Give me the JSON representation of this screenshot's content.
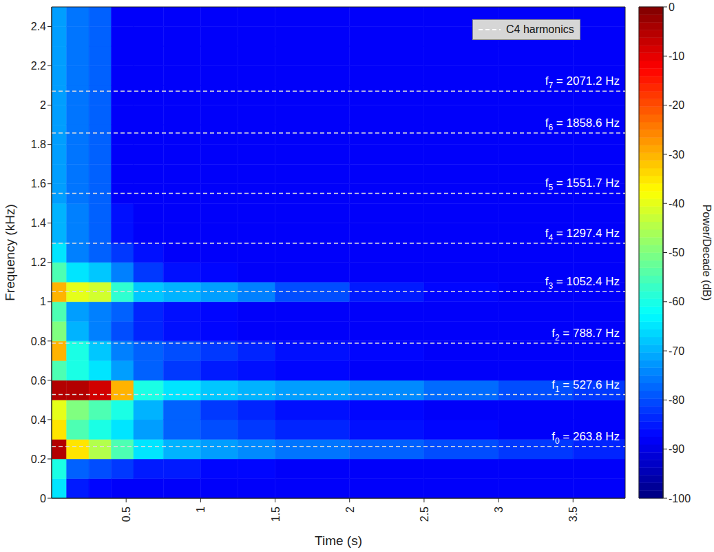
{
  "chart_data": {
    "type": "heatmap",
    "x_label": "Time (s)",
    "y_label": "Frequency (kHz)",
    "xlim": [
      0,
      3.85
    ],
    "xticks": [
      0.5,
      1,
      1.5,
      2,
      2.5,
      3,
      3.5
    ],
    "ylim": [
      0,
      2.5
    ],
    "yticks": [
      0,
      0.2,
      0.4,
      0.6,
      0.8,
      1,
      1.2,
      1.4,
      1.6,
      1.8,
      2,
      2.2,
      2.4
    ],
    "x_edges": [
      0,
      0.1,
      0.25,
      0.4,
      0.55,
      0.75,
      1.0,
      1.25,
      1.5,
      2.0,
      2.5,
      3.0,
      3.5,
      3.85
    ],
    "y_edges": [
      0,
      0.1,
      0.2,
      0.3,
      0.4,
      0.5,
      0.6,
      0.7,
      0.8,
      0.9,
      1.0,
      1.1,
      1.2,
      1.3,
      1.4,
      1.5,
      1.6,
      1.7,
      1.8,
      1.9,
      2.0,
      2.1,
      2.2,
      2.3,
      2.4,
      2.5
    ],
    "cells": [
      [
        -65,
        -85,
        -87,
        -88,
        -88,
        -88,
        -88,
        -88,
        -88,
        -88,
        -88,
        -88,
        -88
      ],
      [
        -60,
        -78,
        -80,
        -82,
        -85,
        -85,
        -87,
        -87,
        -88,
        -88,
        -88,
        -88,
        -88
      ],
      [
        -5,
        -35,
        -45,
        -55,
        -65,
        -70,
        -72,
        -74,
        -76,
        -78,
        -80,
        -82,
        -84
      ],
      [
        -35,
        -55,
        -60,
        -65,
        -72,
        -78,
        -80,
        -82,
        -84,
        -86,
        -87,
        -88,
        -88
      ],
      [
        -40,
        -50,
        -55,
        -60,
        -70,
        -78,
        -82,
        -84,
        -86,
        -87,
        -88,
        -88,
        -88
      ],
      [
        -5,
        -5,
        -8,
        -30,
        -60,
        -65,
        -68,
        -70,
        -72,
        -74,
        -77,
        -80,
        -82
      ],
      [
        -55,
        -60,
        -65,
        -72,
        -78,
        -82,
        -85,
        -86,
        -87,
        -88,
        -88,
        -88,
        -88
      ],
      [
        -30,
        -60,
        -68,
        -75,
        -78,
        -80,
        -82,
        -84,
        -86,
        -87,
        -88,
        -88,
        -88
      ],
      [
        -50,
        -70,
        -75,
        -80,
        -84,
        -86,
        -87,
        -88,
        -88,
        -88,
        -88,
        -88,
        -88
      ],
      [
        -55,
        -72,
        -75,
        -78,
        -84,
        -86,
        -87,
        -88,
        -88,
        -88,
        -88,
        -88,
        -88
      ],
      [
        -30,
        -40,
        -42,
        -58,
        -68,
        -70,
        -72,
        -75,
        -80,
        -85,
        -87,
        -88,
        -88
      ],
      [
        -55,
        -65,
        -68,
        -75,
        -82,
        -86,
        -87,
        -88,
        -88,
        -88,
        -88,
        -88,
        -88
      ],
      [
        -65,
        -75,
        -78,
        -82,
        -86,
        -88,
        -88,
        -88,
        -88,
        -88,
        -88,
        -88,
        -88
      ],
      [
        -70,
        -75,
        -78,
        -86,
        -88,
        -88,
        -88,
        -88,
        -88,
        -88,
        -88,
        -88,
        -88
      ],
      [
        -70,
        -75,
        -78,
        -86,
        -88,
        -88,
        -88,
        -88,
        -88,
        -88,
        -88,
        -88,
        -88
      ],
      [
        -72,
        -76,
        -78,
        -88,
        -88,
        -88,
        -88,
        -88,
        -88,
        -88,
        -88,
        -88,
        -88
      ],
      [
        -72,
        -76,
        -78,
        -88,
        -88,
        -88,
        -88,
        -88,
        -88,
        -88,
        -88,
        -88,
        -88
      ],
      [
        -72,
        -76,
        -78,
        -88,
        -88,
        -88,
        -88,
        -88,
        -88,
        -88,
        -88,
        -88,
        -88
      ],
      [
        -72,
        -76,
        -78,
        -88,
        -88,
        -88,
        -88,
        -88,
        -88,
        -88,
        -88,
        -88,
        -88
      ],
      [
        -72,
        -76,
        -78,
        -88,
        -88,
        -88,
        -88,
        -88,
        -88,
        -88,
        -88,
        -88,
        -88
      ],
      [
        -72,
        -76,
        -78,
        -88,
        -88,
        -88,
        -88,
        -88,
        -88,
        -88,
        -88,
        -88,
        -88
      ],
      [
        -72,
        -76,
        -78,
        -88,
        -88,
        -88,
        -88,
        -88,
        -88,
        -88,
        -88,
        -88,
        -88
      ],
      [
        -72,
        -76,
        -78,
        -88,
        -88,
        -88,
        -88,
        -88,
        -88,
        -88,
        -88,
        -88,
        -88
      ],
      [
        -72,
        -76,
        -78,
        -88,
        -88,
        -88,
        -88,
        -88,
        -88,
        -88,
        -88,
        -88,
        -88
      ],
      [
        -72,
        -76,
        -78,
        -88,
        -88,
        -88,
        -88,
        -88,
        -88,
        -88,
        -88,
        -88,
        -88
      ]
    ],
    "colorbar": {
      "label": "Power/Decade (dB)",
      "range": [
        -100,
        0
      ],
      "ticks": [
        -100,
        -90,
        -80,
        -70,
        -60,
        -50,
        -40,
        -30,
        -20,
        -10,
        0
      ]
    },
    "series": [
      {
        "name": "C4 harmonics",
        "type": "hline",
        "color": "#dddddd",
        "line_style": "dashed",
        "values": [
          0.2638,
          0.5276,
          0.7887,
          1.0524,
          1.2974,
          1.5517,
          1.8586,
          2.0712
        ],
        "labels": [
          "f0 = 263.8 Hz",
          "f1 = 527.6 Hz",
          "f2 = 788.7 Hz",
          "f3 = 1052.4 Hz",
          "f4 = 1297.4 Hz",
          "f5 = 1551.7 Hz",
          "f6 = 1858.6 Hz",
          "f7 = 2071.2 Hz"
        ]
      }
    ],
    "legend": "upper right"
  }
}
